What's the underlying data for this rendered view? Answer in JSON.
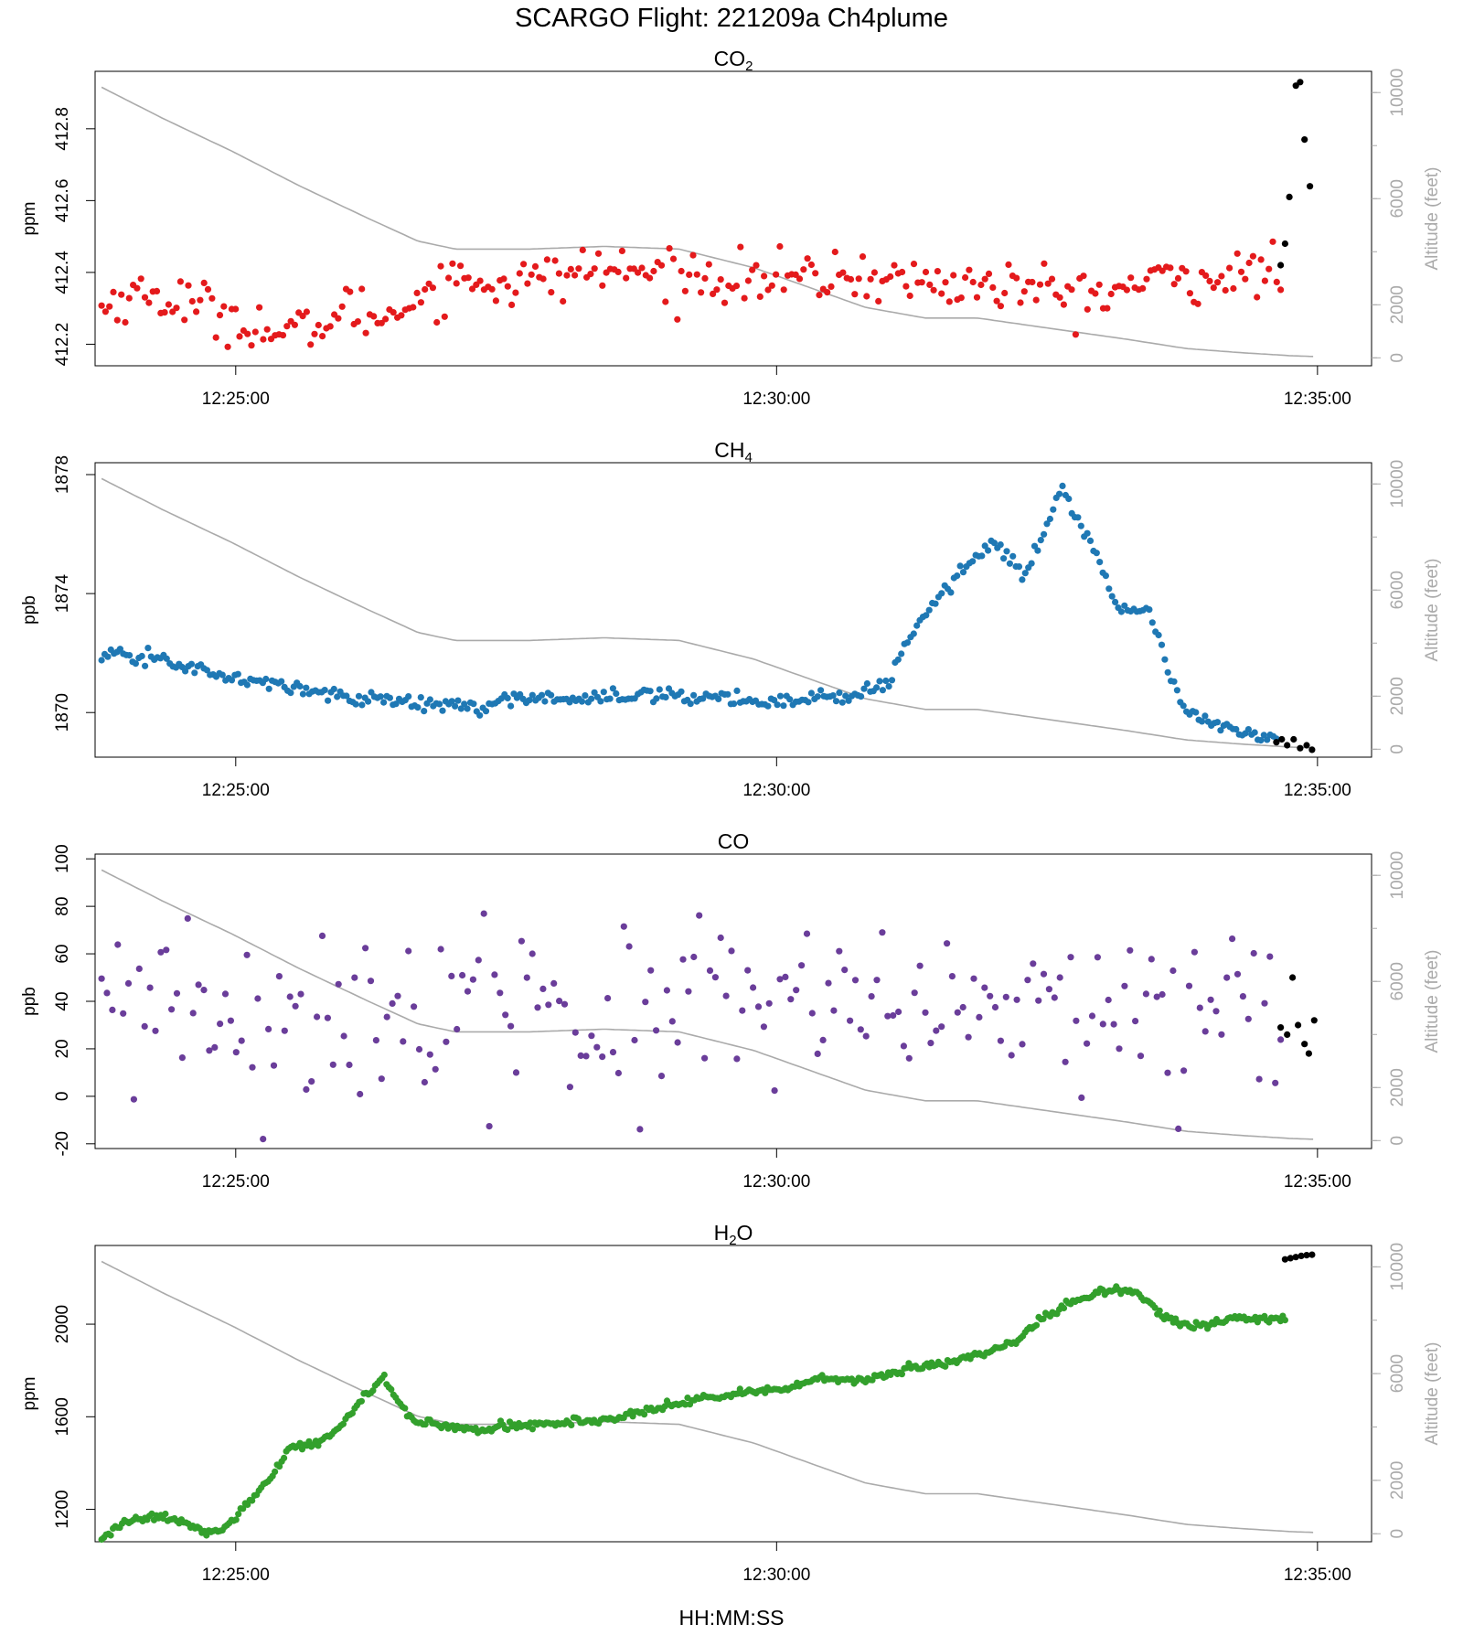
{
  "figure": {
    "title": "SCARGO Flight: 221209a  Ch4plume",
    "xlabel": "HH:MM:SS",
    "time_ticks": [
      "12:25:00",
      "12:30:00",
      "12:35:00"
    ],
    "altitude_axis_label": "Altitude (feet)"
  },
  "colors": {
    "co2": "#e41a1c",
    "ch4": "#1f78b4",
    "co": "#6a3d9a",
    "h2o": "#33a02c",
    "flagged": "#000000",
    "altitude": "#aaaaaa"
  },
  "chart_data": [
    {
      "type": "scatter",
      "id": "co2",
      "title_main": "CO",
      "title_sub": "2",
      "ylabel": "ppm",
      "ylim": [
        412.14,
        412.96
      ],
      "yticks": [
        412.2,
        412.4,
        412.6,
        412.8
      ],
      "ytick_labels": [
        "412.2",
        "412.4",
        "412.6",
        "412.8"
      ],
      "xlim_min": [
        -1.3,
        10.5
      ],
      "series_time_range_min": [
        -1.24,
        9.96
      ],
      "series_control_points": [
        [
          -1.24,
          412.3
        ],
        [
          -1.0,
          412.34
        ],
        [
          -0.5,
          412.32
        ],
        [
          0.0,
          412.27
        ],
        [
          0.4,
          412.22
        ],
        [
          0.6,
          412.24
        ],
        [
          1.0,
          412.3
        ],
        [
          1.3,
          412.27
        ],
        [
          1.5,
          412.32
        ],
        [
          1.9,
          412.38
        ],
        [
          2.5,
          412.37
        ],
        [
          3.2,
          412.41
        ],
        [
          4.0,
          412.39
        ],
        [
          5.0,
          412.38
        ],
        [
          5.6,
          412.39
        ],
        [
          6.2,
          412.37
        ],
        [
          7.0,
          412.36
        ],
        [
          7.6,
          412.33
        ],
        [
          8.3,
          412.38
        ],
        [
          9.0,
          412.39
        ],
        [
          9.5,
          412.42
        ],
        [
          9.65,
          412.42
        ]
      ],
      "series_noise_sd": 0.035,
      "flagged_points": [
        [
          9.66,
          412.42
        ],
        [
          9.7,
          412.48
        ],
        [
          9.74,
          412.61
        ],
        [
          9.8,
          412.92
        ],
        [
          9.84,
          412.93
        ],
        [
          9.88,
          412.77
        ],
        [
          9.93,
          412.64
        ]
      ],
      "altitude_axis": {
        "ylim": [
          -300,
          10800
        ],
        "ticks": [
          0,
          2000,
          6000,
          10000
        ],
        "tick_labels": [
          "0",
          "2000",
          "6000",
          "10000"
        ]
      }
    },
    {
      "type": "scatter",
      "id": "ch4",
      "title_main": "CH",
      "title_sub": "4",
      "ylabel": "ppb",
      "ylim": [
        1868.5,
        1878.4
      ],
      "yticks": [
        1870,
        1874,
        1878
      ],
      "ytick_labels": [
        "1870",
        "1874",
        "1878"
      ],
      "xlim_min": [
        -1.3,
        10.5
      ],
      "series_time_range_min": [
        -1.24,
        9.96
      ],
      "series_control_points": [
        [
          -1.24,
          1871.9
        ],
        [
          -0.6,
          1871.8
        ],
        [
          0.0,
          1871.2
        ],
        [
          0.6,
          1870.9
        ],
        [
          1.0,
          1870.7
        ],
        [
          1.4,
          1870.5
        ],
        [
          2.0,
          1870.3
        ],
        [
          2.6,
          1870.2
        ],
        [
          3.2,
          1870.5
        ],
        [
          3.8,
          1870.5
        ],
        [
          4.6,
          1870.6
        ],
        [
          5.6,
          1870.4
        ],
        [
          6.4,
          1870.5
        ],
        [
          6.9,
          1871.0
        ],
        [
          7.2,
          1873.0
        ],
        [
          7.6,
          1874.5
        ],
        [
          8.0,
          1875.8
        ],
        [
          8.3,
          1874.5
        ],
        [
          8.7,
          1877.5
        ],
        [
          9.0,
          1875.8
        ],
        [
          9.3,
          1873.3
        ],
        [
          9.6,
          1873.4
        ],
        [
          9.8,
          1871.5
        ],
        [
          10.0,
          1870.0
        ],
        [
          10.3,
          1869.5
        ],
        [
          10.7,
          1869.3
        ],
        [
          11.1,
          1869.0
        ],
        [
          11.3,
          1869.0
        ]
      ],
      "series_noise_sd": 0.12,
      "flagged_points": [
        [
          9.62,
          1869.0
        ],
        [
          9.67,
          1869.1
        ],
        [
          9.72,
          1868.9
        ],
        [
          9.78,
          1869.1
        ],
        [
          9.84,
          1868.8
        ],
        [
          9.9,
          1868.9
        ],
        [
          9.95,
          1868.75
        ]
      ],
      "altitude_axis": {
        "ylim": [
          -300,
          10800
        ],
        "ticks": [
          0,
          2000,
          6000,
          10000
        ],
        "tick_labels": [
          "0",
          "2000",
          "6000",
          "10000"
        ]
      }
    },
    {
      "type": "scatter",
      "id": "co",
      "title_main": "CO",
      "title_sub": "",
      "ylabel": "ppb",
      "ylim": [
        -22,
        102
      ],
      "yticks": [
        -20,
        0,
        20,
        40,
        60,
        80,
        100
      ],
      "ytick_labels": [
        "-20",
        "0",
        "20",
        "40",
        "60",
        "80",
        "100"
      ],
      "xlim_min": [
        -1.3,
        10.5
      ],
      "series_time_range_min": [
        -1.24,
        9.96
      ],
      "series_control_points": [
        [
          -1.24,
          35
        ],
        [
          11.3,
          35
        ]
      ],
      "series_noise_sd": 18,
      "flagged_points": [
        [
          9.66,
          29
        ],
        [
          9.72,
          26
        ],
        [
          9.77,
          50
        ],
        [
          9.82,
          30
        ],
        [
          9.88,
          22
        ],
        [
          9.92,
          18
        ],
        [
          9.97,
          32
        ]
      ],
      "altitude_axis": {
        "ylim": [
          -300,
          10800
        ],
        "ticks": [
          0,
          2000,
          6000,
          10000
        ],
        "tick_labels": [
          "0",
          "2000",
          "6000",
          "10000"
        ]
      }
    },
    {
      "type": "scatter",
      "id": "h2o",
      "title_main": "H",
      "title_sub": "2",
      "title_after": "O",
      "ylabel": "ppm",
      "ylim": [
        1060,
        2340
      ],
      "yticks": [
        1200,
        1600,
        2000
      ],
      "ytick_labels": [
        "1200",
        "1600",
        "2000"
      ],
      "xlim_min": [
        -1.3,
        10.5
      ],
      "series_time_range_min": [
        -1.24,
        9.96
      ],
      "series_control_points": [
        [
          -1.24,
          1075
        ],
        [
          -0.9,
          1140
        ],
        [
          -0.6,
          1160
        ],
        [
          -0.3,
          1170
        ],
        [
          -0.1,
          1150
        ],
        [
          0.3,
          1105
        ],
        [
          0.6,
          1110
        ],
        [
          0.9,
          1210
        ],
        [
          1.3,
          1330
        ],
        [
          1.6,
          1470
        ],
        [
          2.0,
          1480
        ],
        [
          2.4,
          1570
        ],
        [
          2.7,
          1680
        ],
        [
          3.0,
          1770
        ],
        [
          3.2,
          1680
        ],
        [
          3.4,
          1590
        ],
        [
          3.8,
          1560
        ],
        [
          4.4,
          1545
        ],
        [
          5.2,
          1565
        ],
        [
          6.0,
          1580
        ],
        [
          6.6,
          1600
        ],
        [
          7.2,
          1640
        ],
        [
          7.8,
          1680
        ],
        [
          8.4,
          1700
        ],
        [
          9.0,
          1720
        ],
        [
          9.6,
          1760
        ],
        [
          10.3,
          1760
        ],
        [
          10.9,
          1810
        ],
        [
          11.5,
          1830
        ],
        [
          12.0,
          1870
        ],
        [
          12.5,
          1920
        ],
        [
          12.9,
          2020
        ],
        [
          13.4,
          2100
        ],
        [
          14.0,
          2150
        ],
        [
          14.4,
          2130
        ],
        [
          14.7,
          2040
        ],
        [
          15.0,
          2000
        ],
        [
          15.4,
          1990
        ],
        [
          15.8,
          2030
        ],
        [
          16.4,
          2020
        ],
        [
          17.0,
          2040
        ]
      ],
      "series_noise_sd": 8,
      "flagged_points": [
        [
          9.7,
          2280
        ],
        [
          9.75,
          2285
        ],
        [
          9.8,
          2290
        ],
        [
          9.85,
          2295
        ],
        [
          9.9,
          2298
        ],
        [
          9.95,
          2300
        ]
      ],
      "altitude_axis": {
        "ylim": [
          -300,
          10800
        ],
        "ticks": [
          0,
          2000,
          6000,
          10000
        ],
        "tick_labels": [
          "0",
          "2000",
          "6000",
          "10000"
        ]
      }
    }
  ],
  "altitude_profile_min_feet": [
    [
      -1.24,
      10200
    ],
    [
      -0.4,
      9000
    ],
    [
      0.5,
      7800
    ],
    [
      1.4,
      6500
    ],
    [
      2.3,
      5300
    ],
    [
      3.0,
      4400
    ],
    [
      3.5,
      4100
    ],
    [
      4.5,
      4100
    ],
    [
      5.5,
      4200
    ],
    [
      6.5,
      4100
    ],
    [
      7.5,
      3400
    ],
    [
      8.3,
      2600
    ],
    [
      9.0,
      1900
    ],
    [
      9.8,
      1500
    ],
    [
      10.5,
      1500
    ],
    [
      11.5,
      1100
    ],
    [
      12.5,
      700
    ],
    [
      13.3,
      350
    ],
    [
      14.0,
      200
    ],
    [
      14.7,
      80
    ],
    [
      15.0,
      50
    ]
  ]
}
